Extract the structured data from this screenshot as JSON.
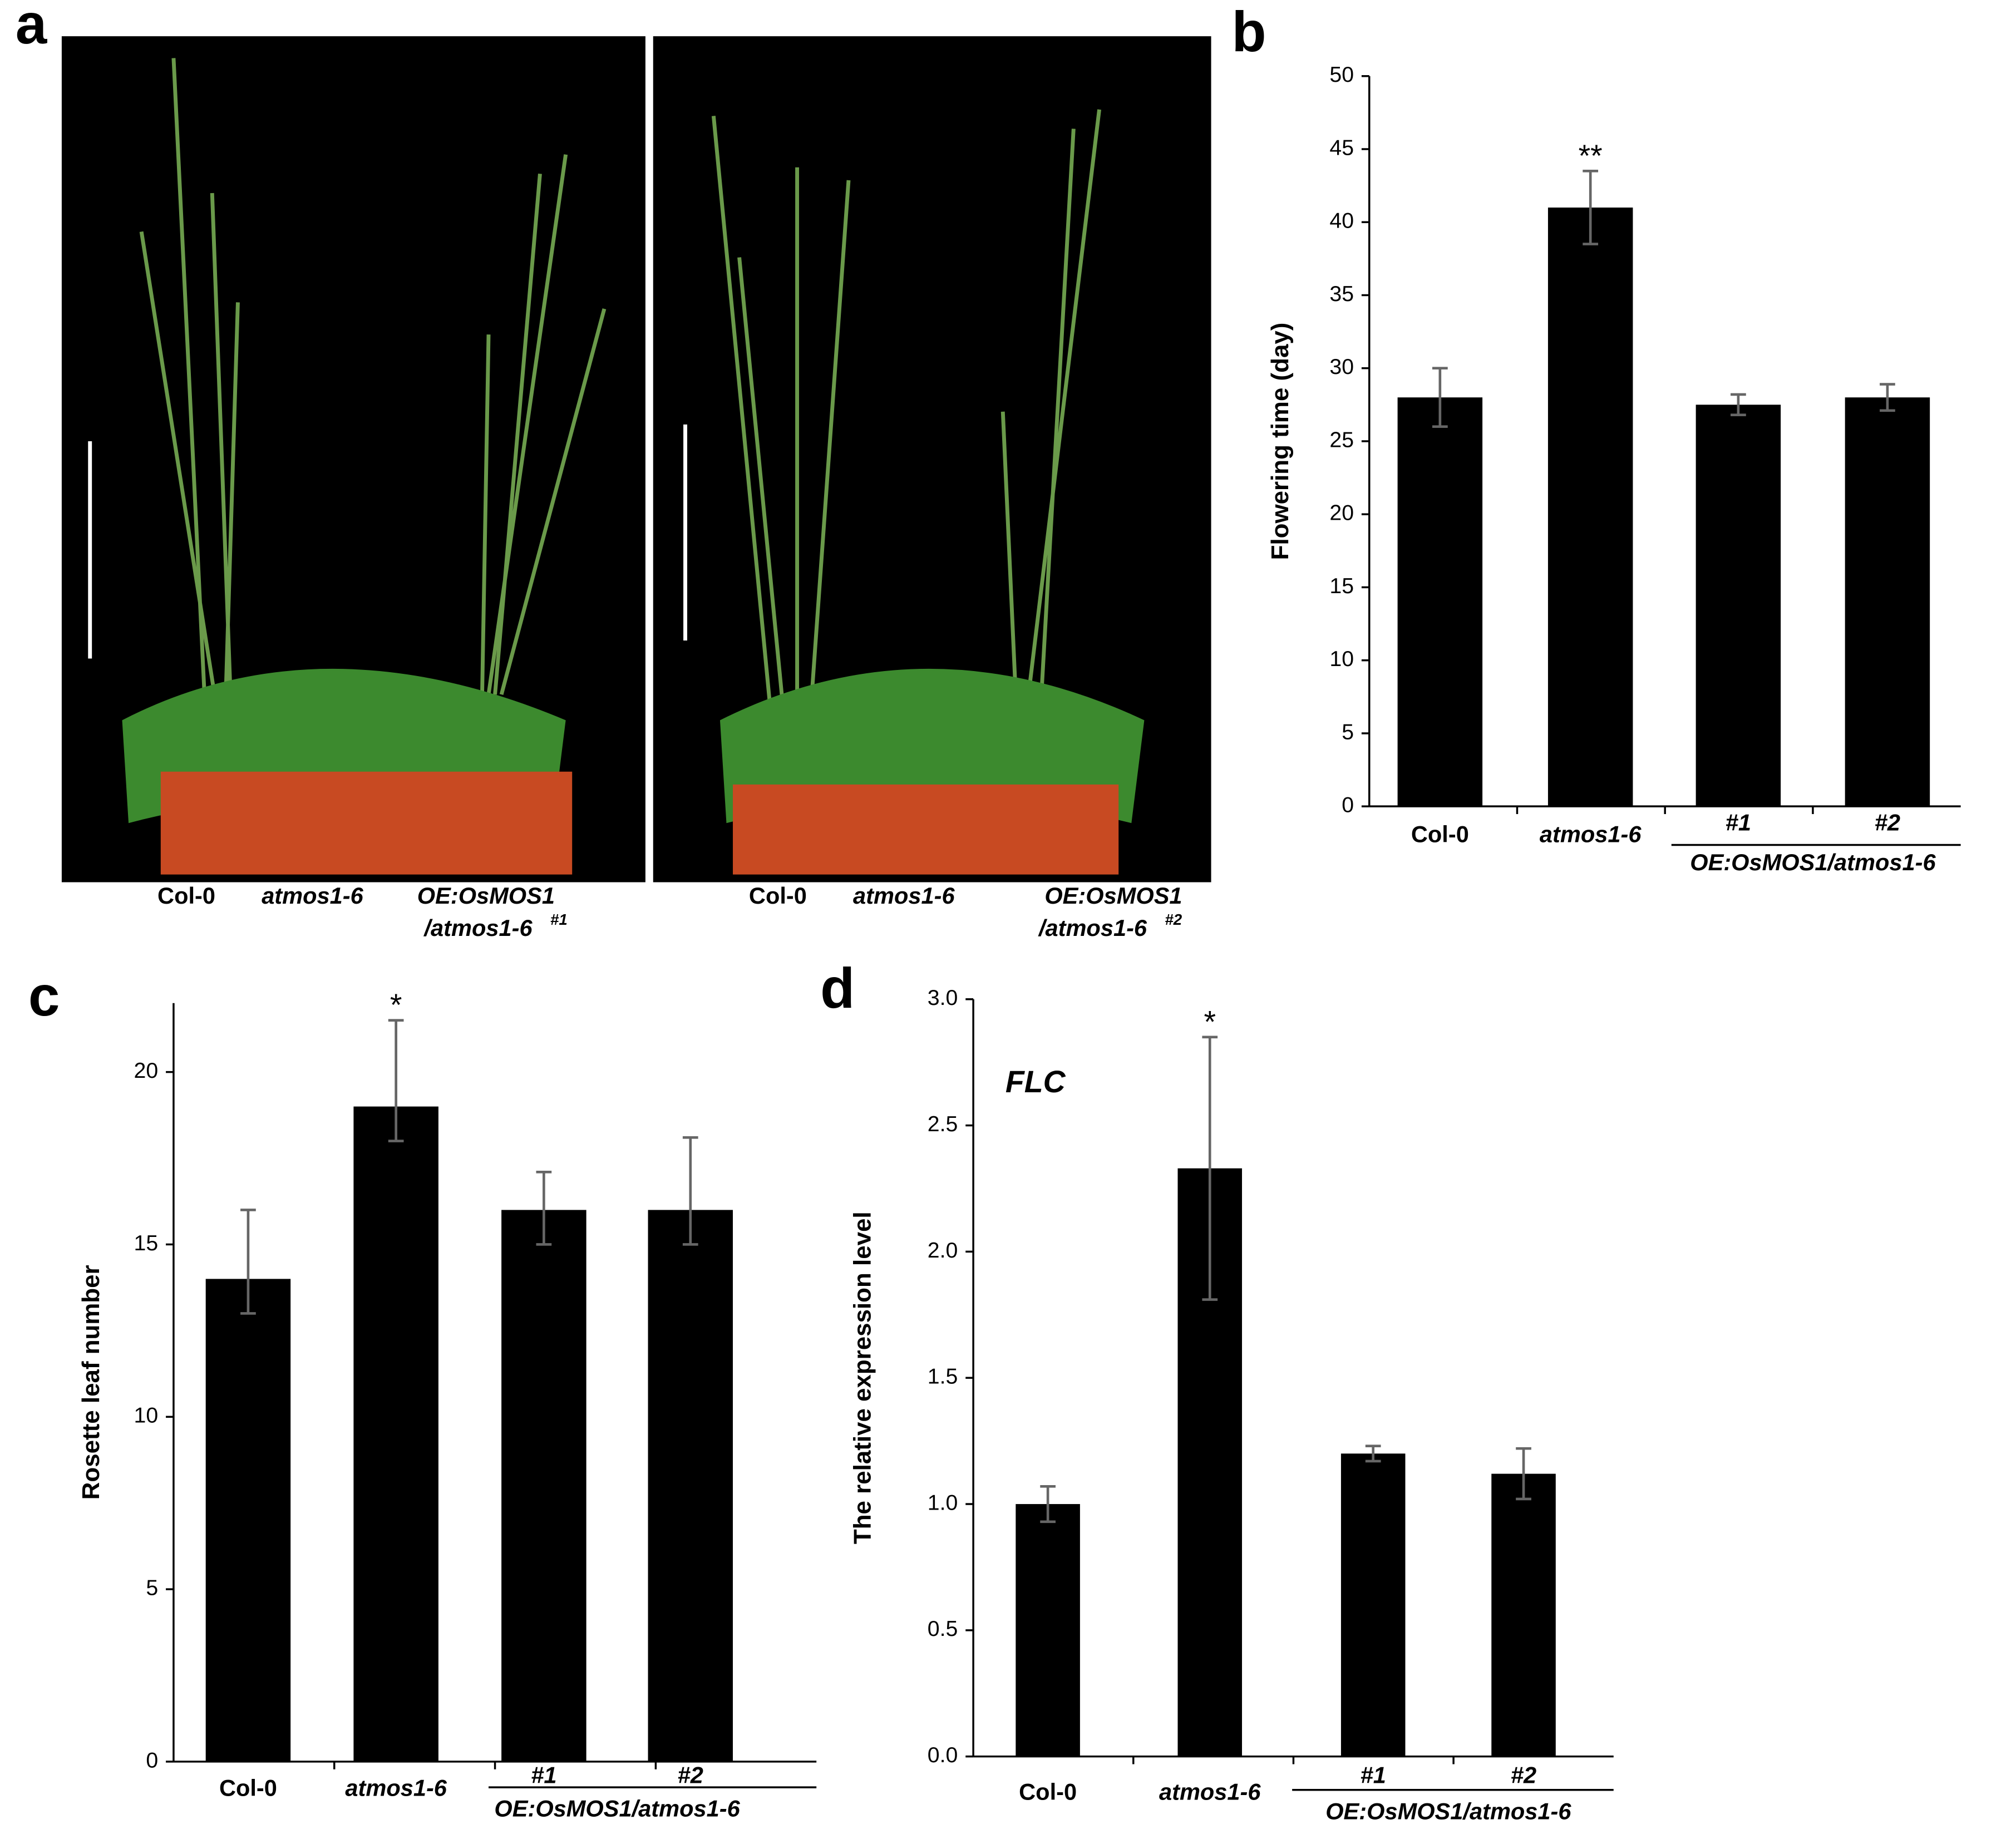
{
  "panel_labels": [
    "a",
    "b",
    "c",
    "d"
  ],
  "photos": [
    {
      "labels": [
        "Col-0",
        "atmos1-6",
        "OE:OsMOS1",
        "/atmos1-6",
        "#1"
      ]
    },
    {
      "labels": [
        "Col-0",
        "atmos1-6",
        "OE:OsMOS1",
        "/atmos1-6",
        "#2"
      ]
    }
  ],
  "chart_data": [
    {
      "type": "bar",
      "y_label": "Flowering time (day)",
      "categories": [
        "Col-0",
        "atmos1-6",
        "#1",
        "#2"
      ],
      "group_label": "OE:OsMOS1/atmos1-6",
      "series": [
        {
          "color": "#000000",
          "values": [
            28,
            41,
            27.5,
            28
          ],
          "errors": [
            2,
            2.5,
            0.7,
            0.9
          ]
        }
      ],
      "annotations": [
        {
          "text": "**",
          "x": "atmos1-6"
        }
      ],
      "ylim": [
        0,
        50
      ],
      "yticks": [
        0,
        5,
        10,
        15,
        20,
        25,
        30,
        35,
        40,
        45,
        50
      ]
    },
    {
      "type": "bar",
      "y_label": "Rosette leaf number",
      "categories": [
        "Col-0",
        "atmos1-6",
        "#1",
        "#2"
      ],
      "group_label": "OE:OsMOS1/atmos1-6",
      "series": [
        {
          "color": "#000000",
          "values": [
            14,
            19,
            16,
            16
          ],
          "errors_lower": [
            1,
            1,
            1,
            1
          ],
          "errors_upper": [
            2,
            2.5,
            1.1,
            2.1
          ]
        }
      ],
      "annotations": [
        {
          "text": "*",
          "x": "atmos1-6"
        }
      ],
      "ylim": [
        0,
        22
      ],
      "yticks": [
        0,
        5,
        10,
        15,
        20
      ]
    },
    {
      "type": "bar",
      "y_label": "The relative expression level",
      "title": "FLC",
      "categories": [
        "Col-0",
        "atmos1-6",
        "#1",
        "#2"
      ],
      "group_label": "OE:OsMOS1/atmos1-6",
      "series": [
        {
          "color": "#000000",
          "values": [
            1.0,
            2.33,
            1.2,
            1.12
          ],
          "errors": [
            0.07,
            0.52,
            0.03,
            0.1
          ]
        }
      ],
      "annotations": [
        {
          "text": "*",
          "x": "atmos1-6"
        }
      ],
      "ylim": [
        0,
        3
      ],
      "yticks": [
        {
          "value": 0,
          "label": "0.0"
        },
        0.5,
        {
          "value": 1,
          "label": "1.0"
        },
        1.5,
        {
          "value": 2,
          "label": "2.0"
        },
        2.5,
        {
          "value": 3,
          "label": "3.0"
        }
      ]
    }
  ]
}
